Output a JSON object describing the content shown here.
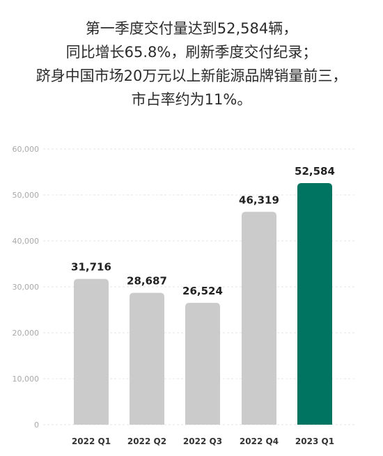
{
  "headline": {
    "lines": [
      "第一季度交付量达到52,584辆，",
      "同比增长65.8%，刷新季度交付纪录；",
      "跻身中国市场20万元以上新能源品牌销量前三，",
      "市占率约为11%。"
    ]
  },
  "colors": {
    "default_bar": "#cbcbcb",
    "highlight_bar": "#007461",
    "grid": "#e6e6e6",
    "highlight_text": "#007461"
  },
  "chart_data": {
    "type": "bar",
    "categories": [
      "2022 Q1",
      "2022 Q2",
      "2022 Q3",
      "2022 Q4",
      "2023 Q1"
    ],
    "values": [
      31716,
      28687,
      26524,
      46319,
      52584
    ],
    "value_labels": [
      "31,716",
      "28,687",
      "26,524",
      "46,319",
      "52,584"
    ],
    "highlight_index": 4,
    "ylim": [
      0,
      60000
    ],
    "yticks": [
      0,
      10000,
      20000,
      30000,
      40000,
      50000,
      60000
    ],
    "ytick_labels": [
      "0",
      "10,000",
      "20,000",
      "30,000",
      "40,000",
      "50,000",
      "60,000"
    ],
    "grid": true,
    "title": "",
    "xlabel": "",
    "ylabel": ""
  }
}
